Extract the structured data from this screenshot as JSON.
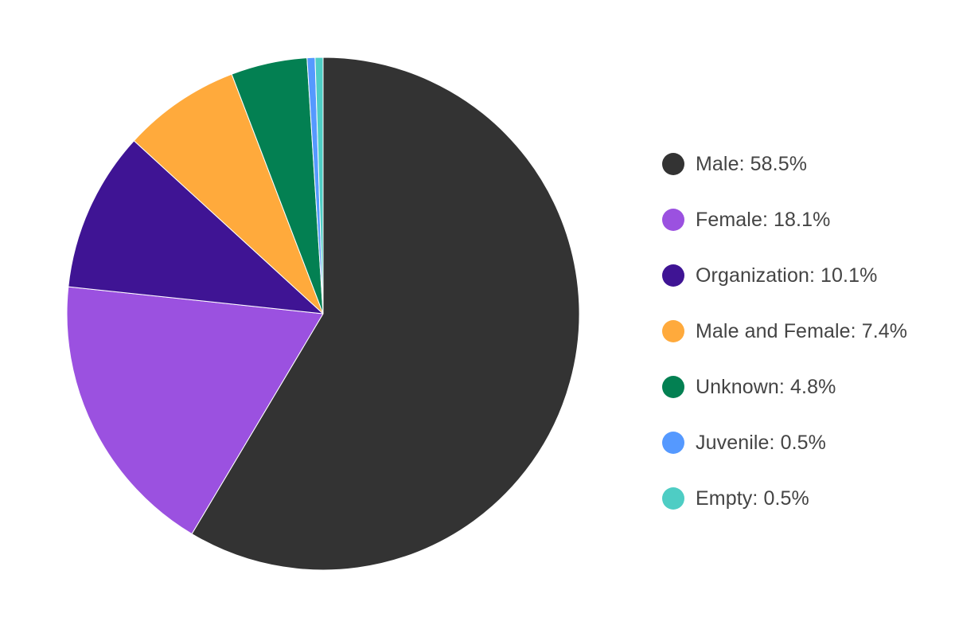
{
  "chart_data": {
    "type": "pie",
    "title": "",
    "start_angle_deg": 0,
    "direction": "clockwise",
    "legend_position": "right",
    "slices": [
      {
        "label": "Male",
        "value": 58.5,
        "display": "Male: 58.5%",
        "color": "#333333"
      },
      {
        "label": "Female",
        "value": 18.1,
        "display": "Female: 18.1%",
        "color": "#9B51E0"
      },
      {
        "label": "Organization",
        "value": 10.1,
        "display": "Organization: 10.1%",
        "color": "#3F1494"
      },
      {
        "label": "Male and Female",
        "value": 7.4,
        "display": "Male and Female: 7.4%",
        "color": "#FFAA3C"
      },
      {
        "label": "Unknown",
        "value": 4.8,
        "display": "Unknown: 4.8%",
        "color": "#038052"
      },
      {
        "label": "Juvenile",
        "value": 0.5,
        "display": "Juvenile: 0.5%",
        "color": "#5599FF"
      },
      {
        "label": "Empty",
        "value": 0.5,
        "display": "Empty: 0.5%",
        "color": "#4ECDC4"
      }
    ]
  }
}
